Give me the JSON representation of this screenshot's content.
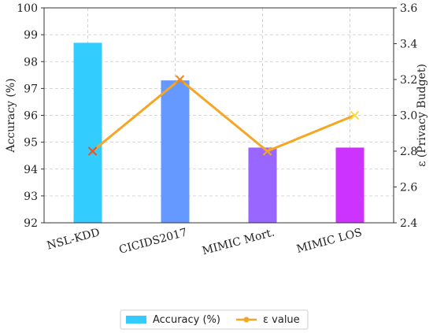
{
  "chart_data": {
    "type": "bar",
    "categories": [
      "NSL-KDD",
      "CICIDS2017",
      "MIMIC Mort.",
      "MIMIC LOS"
    ],
    "series": [
      {
        "name": "Accuracy (%)",
        "type": "bar",
        "axis": "left",
        "values": [
          98.7,
          97.3,
          94.8,
          94.8
        ],
        "colors": [
          "#33ccff",
          "#6699ff",
          "#9966ff",
          "#cc33ff"
        ]
      },
      {
        "name": "ε value",
        "type": "line",
        "axis": "right",
        "values": [
          2.8,
          3.2,
          2.8,
          3.0
        ],
        "color": "#f5a623",
        "marker": "x",
        "marker_colors": [
          "#e8531f",
          "#f08a1a",
          "#f5a623",
          "#ffe030"
        ]
      }
    ],
    "ylabel": "Accuracy (%)",
    "y2label": "ε (Privacy Budget)",
    "ylim": [
      92,
      100
    ],
    "y2lim": [
      2.4,
      3.6
    ],
    "yticks": [
      92,
      93,
      94,
      95,
      96,
      97,
      98,
      99,
      100
    ],
    "y2ticks": [
      "2.4",
      "2.6",
      "2.8",
      "3.0",
      "3.2",
      "3.4",
      "3.6"
    ],
    "grid": true,
    "legend_position": "bottom-center"
  }
}
